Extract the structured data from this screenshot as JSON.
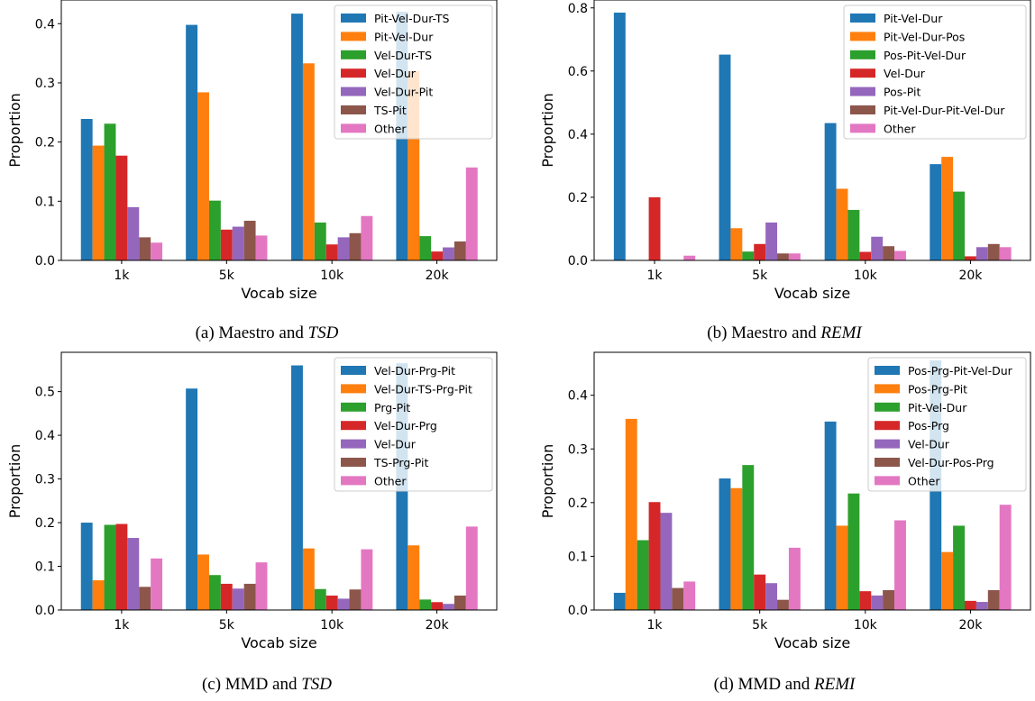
{
  "colors": [
    "#1f77b4",
    "#ff7f0e",
    "#2ca02c",
    "#d62728",
    "#9467bd",
    "#8c564b",
    "#e377c2"
  ],
  "chart_data": [
    {
      "type": "bar",
      "caption_prefix": "(a) Maestro and ",
      "caption_italic": "TSD",
      "xlabel": "Vocab size",
      "ylabel": "Proportion",
      "categories": [
        "1k",
        "5k",
        "10k",
        "20k"
      ],
      "ylim": [
        0,
        0.44
      ],
      "yticks": [
        "0.0",
        "0.1",
        "0.2",
        "0.3",
        "0.4"
      ],
      "legend_position": "top-right",
      "series": [
        {
          "name": "Pit-Vel-Dur-TS",
          "values": [
            0.239,
            0.398,
            0.417,
            0.42
          ]
        },
        {
          "name": "Pit-Vel-Dur",
          "values": [
            0.194,
            0.284,
            0.333,
            0.32
          ]
        },
        {
          "name": "Vel-Dur-TS",
          "values": [
            0.231,
            0.101,
            0.064,
            0.041
          ]
        },
        {
          "name": "Vel-Dur",
          "values": [
            0.177,
            0.052,
            0.027,
            0.015
          ]
        },
        {
          "name": "Vel-Dur-Pit",
          "values": [
            0.09,
            0.057,
            0.039,
            0.022
          ]
        },
        {
          "name": "TS-Pit",
          "values": [
            0.039,
            0.067,
            0.046,
            0.032
          ]
        },
        {
          "name": "Other",
          "values": [
            0.03,
            0.042,
            0.075,
            0.157
          ]
        }
      ]
    },
    {
      "type": "bar",
      "caption_prefix": "(b) Maestro and ",
      "caption_italic": "REMI",
      "xlabel": "Vocab size",
      "ylabel": "Proportion",
      "categories": [
        "1k",
        "5k",
        "10k",
        "20k"
      ],
      "ylim": [
        0,
        0.825
      ],
      "yticks": [
        "0.0",
        "0.2",
        "0.4",
        "0.6",
        "0.8"
      ],
      "legend_position": "top-right",
      "series": [
        {
          "name": "Pit-Vel-Dur",
          "values": [
            0.785,
            0.652,
            0.435,
            0.305
          ]
        },
        {
          "name": "Pit-Vel-Dur-Pos",
          "values": [
            0.0,
            0.102,
            0.227,
            0.328
          ]
        },
        {
          "name": "Pos-Pit-Vel-Dur",
          "values": [
            0.0,
            0.028,
            0.16,
            0.218
          ]
        },
        {
          "name": "Vel-Dur",
          "values": [
            0.2,
            0.052,
            0.027,
            0.013
          ]
        },
        {
          "name": "Pos-Pit",
          "values": [
            0.0,
            0.12,
            0.075,
            0.042
          ]
        },
        {
          "name": "Pit-Vel-Dur-Pit-Vel-Dur",
          "values": [
            0.0,
            0.022,
            0.045,
            0.052
          ]
        },
        {
          "name": "Other",
          "values": [
            0.015,
            0.022,
            0.03,
            0.042
          ]
        }
      ]
    },
    {
      "type": "bar",
      "caption_prefix": "(c) MMD and ",
      "caption_italic": "TSD",
      "xlabel": "Vocab size",
      "ylabel": "Proportion",
      "categories": [
        "1k",
        "5k",
        "10k",
        "20k"
      ],
      "ylim": [
        0,
        0.59
      ],
      "yticks": [
        "0.0",
        "0.1",
        "0.2",
        "0.3",
        "0.4",
        "0.5"
      ],
      "legend_position": "top-right",
      "series": [
        {
          "name": "Vel-Dur-Prg-Pit",
          "values": [
            0.2,
            0.507,
            0.56,
            0.565
          ]
        },
        {
          "name": "Vel-Dur-TS-Prg-Pit",
          "values": [
            0.068,
            0.127,
            0.141,
            0.148
          ]
        },
        {
          "name": "Prg-Pit",
          "values": [
            0.195,
            0.08,
            0.048,
            0.024
          ]
        },
        {
          "name": "Vel-Dur-Prg",
          "values": [
            0.197,
            0.06,
            0.033,
            0.018
          ]
        },
        {
          "name": "Vel-Dur",
          "values": [
            0.165,
            0.049,
            0.026,
            0.014
          ]
        },
        {
          "name": "TS-Prg-Pit",
          "values": [
            0.053,
            0.06,
            0.047,
            0.033
          ]
        },
        {
          "name": "Other",
          "values": [
            0.118,
            0.109,
            0.139,
            0.191
          ]
        }
      ]
    },
    {
      "type": "bar",
      "caption_prefix": "(d) MMD and ",
      "caption_italic": "REMI",
      "xlabel": "Vocab size",
      "ylabel": "Proportion",
      "categories": [
        "1k",
        "5k",
        "10k",
        "20k"
      ],
      "ylim": [
        0,
        0.48
      ],
      "yticks": [
        "0.0",
        "0.1",
        "0.2",
        "0.3",
        "0.4"
      ],
      "legend_position": "top-right",
      "series": [
        {
          "name": "Pos-Prg-Pit-Vel-Dur",
          "values": [
            0.032,
            0.245,
            0.351,
            0.465
          ]
        },
        {
          "name": "Pos-Prg-Pit",
          "values": [
            0.356,
            0.227,
            0.157,
            0.108
          ]
        },
        {
          "name": "Pit-Vel-Dur",
          "values": [
            0.13,
            0.27,
            0.217,
            0.157
          ]
        },
        {
          "name": "Pos-Prg",
          "values": [
            0.201,
            0.066,
            0.035,
            0.017
          ]
        },
        {
          "name": "Vel-Dur",
          "values": [
            0.181,
            0.05,
            0.027,
            0.015
          ]
        },
        {
          "name": "Vel-Dur-Pos-Prg",
          "values": [
            0.041,
            0.019,
            0.037,
            0.037
          ]
        },
        {
          "name": "Other",
          "values": [
            0.053,
            0.116,
            0.167,
            0.196
          ]
        }
      ]
    }
  ]
}
